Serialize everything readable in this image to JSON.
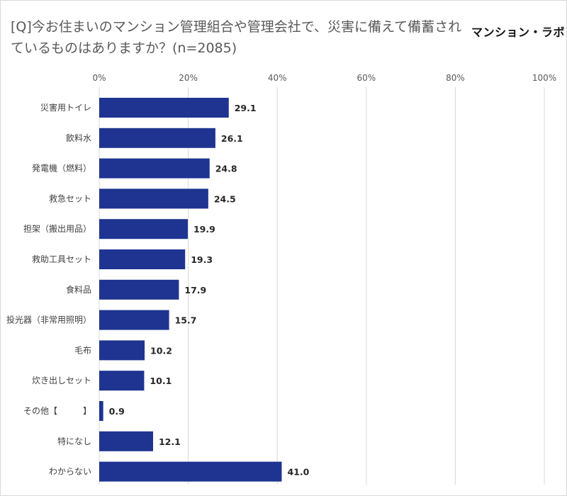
{
  "header": {
    "title": "[Q]今お住まいのマンション管理組合や管理会社で、災害に備えて備蓄されているものはありますか？(n=2085)",
    "logo_text": "マンション・ラボ"
  },
  "colors": {
    "bar": "#1f3491",
    "grid": "#d9d9d9",
    "text": "#595959",
    "value": "#262626"
  },
  "chart_data": {
    "type": "bar",
    "orientation": "horizontal",
    "title": "[Q]今お住まいのマンション管理組合や管理会社で、災害に備えて備蓄されているものはありますか？(n=2085)",
    "xlim": [
      0,
      100
    ],
    "ticks": [
      "0%",
      "20%",
      "40%",
      "60%",
      "80%",
      "100%"
    ],
    "tick_values": [
      0,
      20,
      40,
      60,
      80,
      100
    ],
    "grid": true,
    "axis_position": "top",
    "categories": [
      "災害用トイレ",
      "飲料水",
      "発電機（燃料）",
      "救急セット",
      "担架（搬出用品）",
      "救助工具セット",
      "食料品",
      "投光器（非常用照明）",
      "毛布",
      "炊き出しセット",
      "その他【　　　】",
      "特になし",
      "わからない"
    ],
    "values": [
      29.1,
      26.1,
      24.8,
      24.5,
      19.9,
      19.3,
      17.9,
      15.7,
      10.2,
      10.1,
      0.9,
      12.1,
      41.0
    ],
    "value_labels": [
      "29.1",
      "26.1",
      "24.8",
      "24.5",
      "19.9",
      "19.3",
      "17.9",
      "15.7",
      "10.2",
      "10.1",
      "0.9",
      "12.1",
      "41.0"
    ]
  }
}
